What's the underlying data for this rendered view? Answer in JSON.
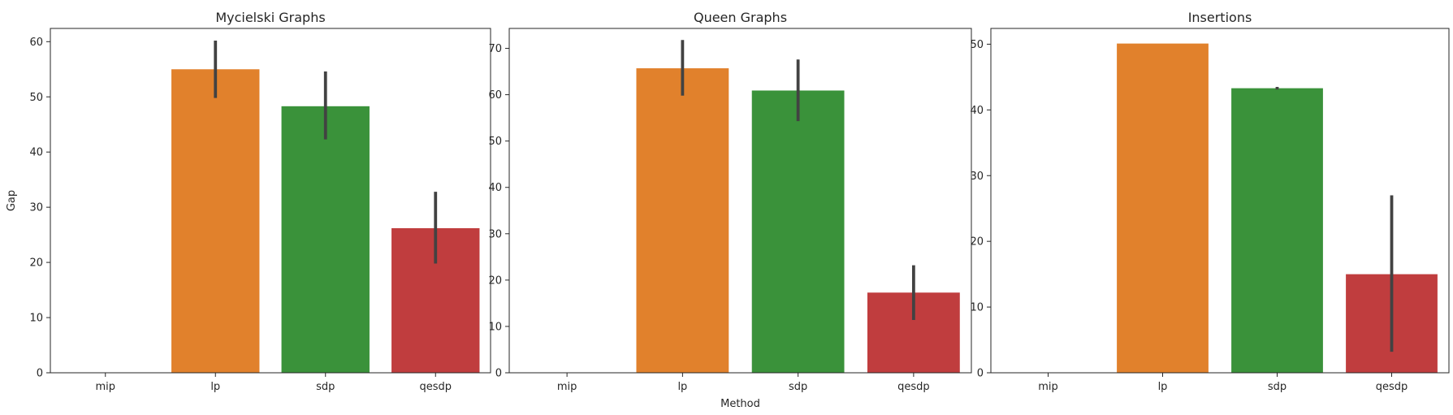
{
  "figure": {
    "xlabel": "Method",
    "ylabel": "Gap"
  },
  "chart_data": [
    {
      "type": "bar",
      "title": "Mycielski Graphs",
      "categories": [
        "mip",
        "lp",
        "sdp",
        "qesdp"
      ],
      "values": [
        0,
        55.0,
        48.3,
        26.2
      ],
      "error_low": [
        0,
        49.8,
        42.3,
        19.8
      ],
      "error_high": [
        0,
        60.2,
        54.6,
        32.8
      ],
      "colors": [
        "#1f77b4",
        "#e1812c",
        "#3a923a",
        "#c03d3e"
      ],
      "ylim": [
        0,
        62.4
      ],
      "yticks": [
        0,
        10,
        20,
        30,
        40,
        50,
        60
      ],
      "xlabel": "",
      "ylabel": "Gap"
    },
    {
      "type": "bar",
      "title": "Queen Graphs",
      "categories": [
        "mip",
        "lp",
        "sdp",
        "qesdp"
      ],
      "values": [
        0,
        65.7,
        60.9,
        17.3
      ],
      "error_low": [
        0,
        59.8,
        54.3,
        11.4
      ],
      "error_high": [
        0,
        71.8,
        67.6,
        23.2
      ],
      "colors": [
        "#1f77b4",
        "#e1812c",
        "#3a923a",
        "#c03d3e"
      ],
      "ylim": [
        0,
        74.3
      ],
      "yticks": [
        0,
        10,
        20,
        30,
        40,
        50,
        60,
        70
      ],
      "xlabel": "Method",
      "ylabel": ""
    },
    {
      "type": "bar",
      "title": "Insertions",
      "categories": [
        "mip",
        "lp",
        "sdp",
        "qesdp"
      ],
      "values": [
        0,
        50.1,
        43.3,
        15.0
      ],
      "error_low": [
        0,
        50.1,
        43.1,
        3.2
      ],
      "error_high": [
        0,
        50.1,
        43.5,
        27.0
      ],
      "colors": [
        "#1f77b4",
        "#e1812c",
        "#3a923a",
        "#c03d3e"
      ],
      "ylim": [
        0,
        52.4
      ],
      "yticks": [
        0,
        10,
        20,
        30,
        40,
        50
      ],
      "xlabel": "",
      "ylabel": ""
    }
  ]
}
